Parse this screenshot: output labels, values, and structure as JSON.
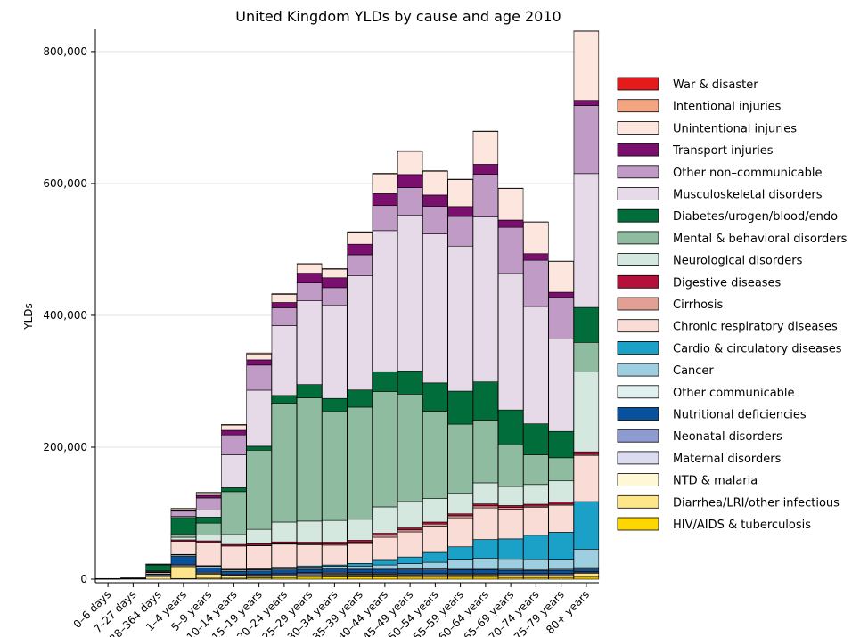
{
  "chart_data": {
    "type": "bar",
    "stacked": true,
    "title": "United Kingdom YLDs by cause and age 2010",
    "xlabel": "",
    "ylabel": "YLDs",
    "ylim": [
      0,
      835000
    ],
    "yticks": [
      0,
      200000,
      400000,
      600000,
      800000
    ],
    "ytick_labels": [
      "0",
      "200,000",
      "400,000",
      "600,000",
      "800,000"
    ],
    "grid": true,
    "legend_position": "right",
    "categories": [
      "0–6 days",
      "7–27 days",
      "28–364 days",
      "1–4 years",
      "5–9 years",
      "10–14 years",
      "15–19 years",
      "20–24 years",
      "25–29 years",
      "30–34 years",
      "35–39 years",
      "40–44 years",
      "45–49 years",
      "50–54 years",
      "55–59 years",
      "60–64 years",
      "65–69 years",
      "70–74 years",
      "75–79 years",
      "80+ years"
    ],
    "series": [
      {
        "name": "HIV/AIDS & tuberculosis",
        "color": "#ffd700",
        "values": [
          0,
          0,
          0,
          1000,
          1500,
          1500,
          2000,
          2500,
          3000,
          3500,
          3500,
          3500,
          3000,
          3000,
          3000,
          3000,
          2500,
          2500,
          2500,
          3000
        ]
      },
      {
        "name": "Diarrhea/LRI/other infectious",
        "color": "#fde68a",
        "values": [
          200,
          800,
          4000,
          18000,
          6000,
          3000,
          2000,
          2000,
          2500,
          2500,
          2500,
          2500,
          2500,
          2500,
          3000,
          3000,
          3000,
          3000,
          3000,
          6000
        ]
      },
      {
        "name": "NTD & malaria",
        "color": "#fff8d6",
        "values": [
          0,
          0,
          500,
          1500,
          1500,
          1500,
          1000,
          1500,
          1500,
          1500,
          1500,
          1500,
          1500,
          1500,
          1500,
          1500,
          1500,
          1500,
          1500,
          1000
        ]
      },
      {
        "name": "Maternal disorders",
        "color": "#dcdcf0",
        "values": [
          0,
          0,
          0,
          0,
          0,
          100,
          1000,
          1500,
          1500,
          1500,
          800,
          500,
          100,
          0,
          0,
          0,
          0,
          0,
          0,
          0
        ]
      },
      {
        "name": "Neonatal disorders",
        "color": "#8d9bd1",
        "values": [
          200,
          300,
          2000,
          2000,
          1500,
          1500,
          1500,
          1500,
          1500,
          1500,
          1500,
          1500,
          1500,
          1500,
          1500,
          1500,
          1500,
          1500,
          1500,
          1500
        ]
      },
      {
        "name": "Nutritional deficiencies",
        "color": "#08519c",
        "values": [
          0,
          0,
          1000,
          12000,
          7000,
          4000,
          5000,
          5000,
          5000,
          5000,
          5000,
          5500,
          5500,
          5500,
          5500,
          5500,
          5000,
          4500,
          5000,
          4000
        ]
      },
      {
        "name": "Other communicable",
        "color": "#dff0ef",
        "values": [
          0,
          0,
          500,
          2000,
          2000,
          2000,
          1500,
          1500,
          1500,
          1500,
          1500,
          1500,
          1500,
          1500,
          1500,
          1500,
          1500,
          1500,
          1500,
          2000
        ]
      },
      {
        "name": "Cancer",
        "color": "#9ecfe0",
        "values": [
          0,
          0,
          0,
          500,
          500,
          1000,
          1000,
          1500,
          2000,
          2500,
          3500,
          5000,
          8000,
          10000,
          13000,
          16000,
          15000,
          15000,
          14000,
          28000
        ]
      },
      {
        "name": "Cardio & circulatory diseases",
        "color": "#1ba1c8",
        "values": [
          0,
          0,
          0,
          500,
          500,
          500,
          500,
          1000,
          1500,
          2000,
          4000,
          7000,
          10000,
          15000,
          20000,
          28000,
          31000,
          37000,
          42000,
          72000
        ]
      },
      {
        "name": "Chronic respiratory diseases",
        "color": "#fadcd6",
        "values": [
          200,
          300,
          2000,
          20000,
          35000,
          35000,
          35000,
          35000,
          32000,
          30000,
          30000,
          35000,
          38000,
          40000,
          44000,
          48000,
          45000,
          42000,
          41000,
          70000
        ]
      },
      {
        "name": "Cirrhosis",
        "color": "#e1a093",
        "values": [
          0,
          0,
          0,
          0,
          0,
          0,
          500,
          1000,
          1500,
          1500,
          2000,
          3000,
          3000,
          3000,
          3000,
          3000,
          2500,
          2000,
          1500,
          1500
        ]
      },
      {
        "name": "Digestive diseases",
        "color": "#b5103c",
        "values": [
          0,
          0,
          500,
          2000,
          2500,
          2500,
          2500,
          2500,
          2500,
          3000,
          3000,
          3000,
          3000,
          3000,
          3000,
          3000,
          3000,
          3000,
          3500,
          4000
        ]
      },
      {
        "name": "Neurological disorders",
        "color": "#d5e8df",
        "values": [
          0,
          0,
          1000,
          4000,
          9000,
          15000,
          22000,
          30000,
          32000,
          33000,
          32000,
          40000,
          40000,
          36000,
          31000,
          32000,
          29000,
          30000,
          32000,
          121000
        ]
      },
      {
        "name": "Mental & behavioral disorders",
        "color": "#8fbca0",
        "values": [
          0,
          0,
          1000,
          5000,
          18000,
          65000,
          120000,
          180000,
          187000,
          165000,
          170000,
          175000,
          163000,
          132000,
          105000,
          95000,
          63000,
          45000,
          35000,
          45000
        ]
      },
      {
        "name": "Diabetes/urogen/blood/endo",
        "color": "#006d3a",
        "values": [
          200,
          300,
          9000,
          25000,
          9000,
          6000,
          6000,
          12000,
          20000,
          20000,
          26000,
          30000,
          35000,
          43000,
          50000,
          58000,
          53000,
          47000,
          40000,
          53000
        ]
      },
      {
        "name": "Musculoskeletal disorders",
        "color": "#e7dae8",
        "values": [
          0,
          0,
          0,
          1500,
          11000,
          50000,
          85000,
          106000,
          127000,
          141000,
          173000,
          214000,
          236000,
          226000,
          220000,
          250000,
          207000,
          178000,
          140000,
          203000
        ]
      },
      {
        "name": "Other non–communicable",
        "color": "#c09bc5",
        "values": [
          0,
          0,
          1000,
          8000,
          18000,
          30000,
          38000,
          27000,
          27000,
          27000,
          32000,
          38000,
          42000,
          42000,
          45000,
          65000,
          70000,
          70000,
          63000,
          103000
        ]
      },
      {
        "name": "Transport injuries",
        "color": "#7a0f6e",
        "values": [
          0,
          0,
          0,
          1000,
          4000,
          7000,
          8000,
          8000,
          15000,
          15000,
          16000,
          18000,
          20000,
          17000,
          15000,
          15000,
          11000,
          10000,
          8000,
          8000
        ]
      },
      {
        "name": "Unintentional injuries",
        "color": "#fde6de",
        "values": [
          200,
          300,
          500,
          3000,
          4000,
          8000,
          9000,
          12000,
          13000,
          13000,
          18000,
          30000,
          35000,
          36000,
          41000,
          50000,
          48000,
          48000,
          47000,
          105000
        ]
      },
      {
        "name": "Intentional injuries",
        "color": "#f4a582",
        "values": [
          0,
          0,
          0,
          200,
          500,
          1000,
          1500,
          1500,
          1500,
          1000,
          1000,
          1000,
          1000,
          800,
          600,
          500,
          400,
          300,
          200,
          200
        ]
      },
      {
        "name": "War & disaster",
        "color": "#e41a1c",
        "values": [
          0,
          0,
          0,
          0,
          0,
          0,
          0,
          0,
          0,
          0,
          0,
          0,
          0,
          0,
          0,
          0,
          0,
          0,
          0,
          0
        ]
      }
    ]
  }
}
